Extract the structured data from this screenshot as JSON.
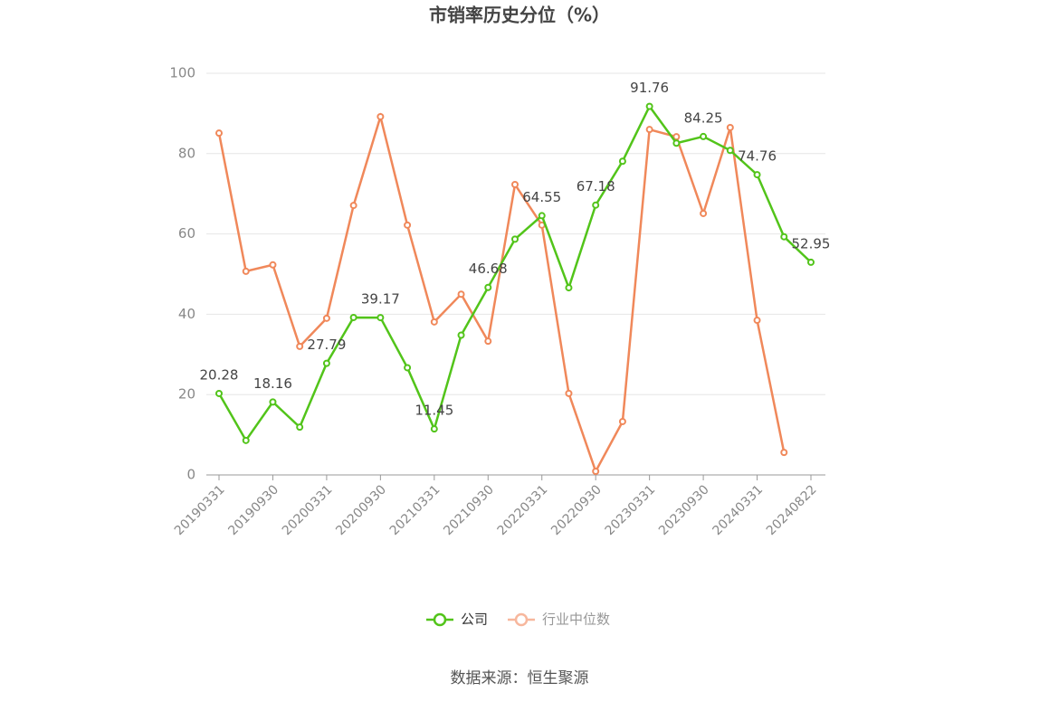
{
  "chart_data": {
    "type": "line",
    "title": "市销率历史分位（%）",
    "categories": [
      "20190331",
      null,
      "20190930",
      null,
      "20200331",
      null,
      "20200930",
      null,
      "20210331",
      null,
      "20210930",
      null,
      "20220331",
      null,
      "20220930",
      null,
      "20230331",
      null,
      "20230930",
      null,
      "20240331",
      null,
      "20240822"
    ],
    "series": [
      {
        "name": "公司",
        "color": "#52c41a",
        "values": [
          20.28,
          8.6,
          18.16,
          11.9,
          27.79,
          39.2,
          39.17,
          26.7,
          11.45,
          34.8,
          46.68,
          58.7,
          64.55,
          46.6,
          67.18,
          78.1,
          91.76,
          82.6,
          84.25,
          80.8,
          74.76,
          59.3,
          52.95
        ]
      },
      {
        "name": "行业中位数",
        "color": "#f0885a",
        "values": [
          85.1,
          50.7,
          52.3,
          32.0,
          39.0,
          67.1,
          89.2,
          62.2,
          38.1,
          45.0,
          33.3,
          72.3,
          62.2,
          20.3,
          0.9,
          13.3,
          86.0,
          84.2,
          65.1,
          86.5,
          38.5,
          5.6,
          null
        ]
      }
    ],
    "ylim": [
      0,
      100
    ],
    "yticks": [
      0,
      20,
      40,
      60,
      80,
      100
    ],
    "grid": true,
    "source": "数据来源：恒生聚源"
  }
}
